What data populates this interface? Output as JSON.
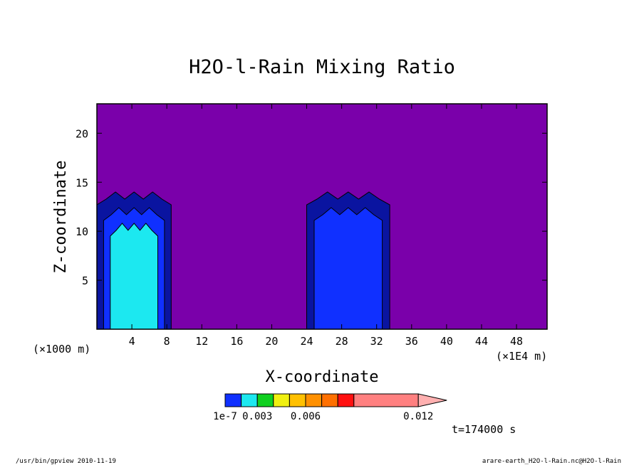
{
  "chart_data": {
    "type": "heatmap",
    "title": "H2O-l-Rain Mixing Ratio",
    "xlabel": "X-coordinate",
    "ylabel": "Z-coordinate",
    "x_unit": "(×1E4 m)",
    "y_unit": "(×1000 m)",
    "xlim": [
      0,
      51.5
    ],
    "ylim": [
      0,
      23
    ],
    "x_ticks": [
      4,
      8,
      12,
      16,
      20,
      24,
      28,
      32,
      36,
      40,
      44,
      48
    ],
    "y_ticks": [
      5,
      10,
      15,
      20
    ],
    "time_label": "t=174000 s",
    "colorbar": {
      "tick_labels": [
        "1e-7",
        "0.003",
        "0.006",
        "0.012"
      ],
      "tick_values": [
        1e-07,
        0.003,
        0.006,
        0.012
      ],
      "level_colors": [
        "#1030ff",
        "#1ce8f0",
        "#10d020",
        "#f0f010",
        "#ffc000",
        "#ff9000",
        "#ff7000",
        "#ff1010",
        "#ff8080",
        "#ffb0b0"
      ],
      "background_color": "#7a00aa"
    },
    "cells": [
      {
        "name": "cell-1",
        "x_range": [
          0,
          8.5
        ],
        "top_z": 14,
        "levels": [
          "#0a14a0",
          "#1030ff",
          "#1ce8f0"
        ]
      },
      {
        "name": "cell-2",
        "x_range": [
          24,
          33.5
        ],
        "top_z": 14,
        "levels": [
          "#0a14a0",
          "#1030ff"
        ]
      }
    ]
  },
  "footer": {
    "left": "/usr/bin/gpview  2010-11-19",
    "right": "arare-earth_H2O-l-Rain.nc@H2O-l-Rain"
  }
}
